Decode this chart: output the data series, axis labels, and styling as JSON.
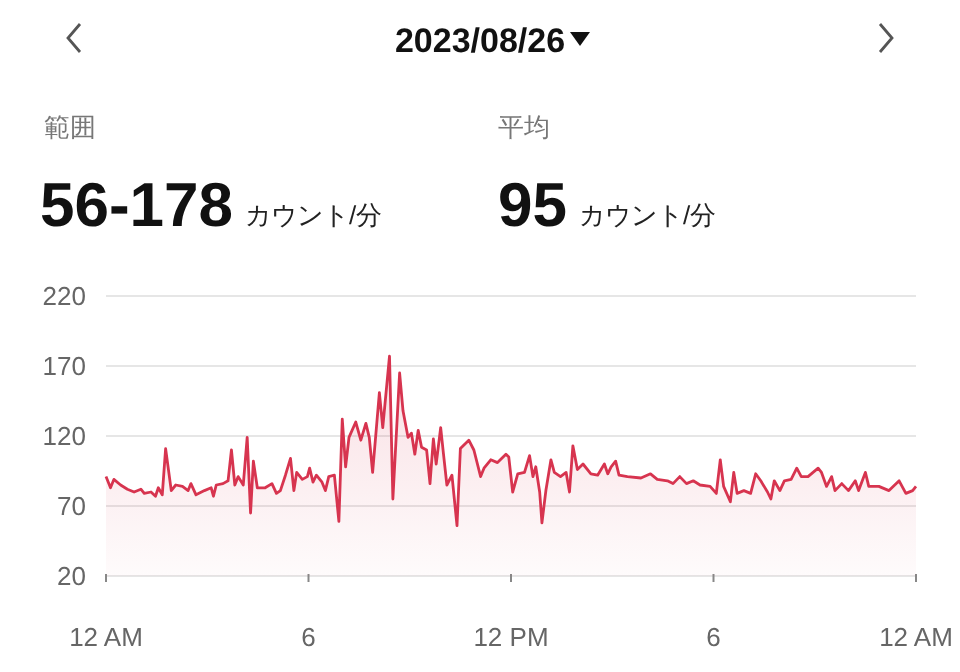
{
  "chart_data": {
    "type": "area",
    "title": "2023/08/26",
    "annotations": [
      "範囲",
      "56-178",
      "カウント/分",
      "平均",
      "95",
      "カウント/分"
    ],
    "color": "#d7344f",
    "marker": "none",
    "grid": "y",
    "xlim": [
      "2023-08-26T00:00",
      "2023-08-27T00:00"
    ],
    "xticks": [
      {
        "value": "2023-08-26T00:00",
        "label": "12 AM"
      },
      {
        "value": "2023-08-26T06:00",
        "label": "6"
      },
      {
        "value": "2023-08-26T12:00",
        "label": "12 PM"
      },
      {
        "value": "2023-08-26T18:00",
        "label": "6"
      },
      {
        "value": "2023-08-27T00:00",
        "label": "12 AM"
      }
    ],
    "ylim": [
      20,
      220
    ],
    "yticks": [
      20,
      70,
      120,
      170,
      220
    ],
    "x": [
      "2023-08-26T00:00",
      "2023-08-26T00:08",
      "2023-08-26T00:14",
      "2023-08-26T00:26",
      "2023-08-26T00:38",
      "2023-08-26T00:50",
      "2023-08-26T01:02",
      "2023-08-26T01:08",
      "2023-08-26T01:20",
      "2023-08-26T01:28",
      "2023-08-26T01:33",
      "2023-08-26T01:40",
      "2023-08-26T01:46",
      "2023-08-26T01:56",
      "2023-08-26T02:04",
      "2023-08-26T02:16",
      "2023-08-26T02:26",
      "2023-08-26T02:31",
      "2023-08-26T02:40",
      "2023-08-26T02:55",
      "2023-08-26T03:07",
      "2023-08-26T03:11",
      "2023-08-26T03:16",
      "2023-08-26T03:28",
      "2023-08-26T03:37",
      "2023-08-26T03:43",
      "2023-08-26T03:49",
      "2023-08-26T03:55",
      "2023-08-26T04:04",
      "2023-08-26T04:11",
      "2023-08-26T04:17",
      "2023-08-26T04:22",
      "2023-08-26T04:29",
      "2023-08-26T04:43",
      "2023-08-26T04:55",
      "2023-08-26T05:03",
      "2023-08-26T05:10",
      "2023-08-26T05:19",
      "2023-08-26T05:28",
      "2023-08-26T05:34",
      "2023-08-26T05:39",
      "2023-08-26T05:49",
      "2023-08-26T05:58",
      "2023-08-26T06:02",
      "2023-08-26T06:08",
      "2023-08-26T06:14",
      "2023-08-26T06:24",
      "2023-08-26T06:30",
      "2023-08-26T06:36",
      "2023-08-26T06:46",
      "2023-08-26T06:54",
      "2023-08-26T07:00",
      "2023-08-26T07:06",
      "2023-08-26T07:12",
      "2023-08-26T07:24",
      "2023-08-26T07:33",
      "2023-08-26T07:42",
      "2023-08-26T07:48",
      "2023-08-26T07:54",
      "2023-08-26T08:06",
      "2023-08-26T08:12",
      "2023-08-26T08:24",
      "2023-08-26T08:30",
      "2023-08-26T08:42",
      "2023-08-26T08:48",
      "2023-08-26T08:57",
      "2023-08-26T09:03",
      "2023-08-26T09:09",
      "2023-08-26T09:15",
      "2023-08-26T09:21",
      "2023-08-26T09:30",
      "2023-08-26T09:36",
      "2023-08-26T09:42",
      "2023-08-26T09:47",
      "2023-08-26T09:55",
      "2023-08-26T10:00",
      "2023-08-26T10:06",
      "2023-08-26T10:15",
      "2023-08-26T10:24",
      "2023-08-26T10:30",
      "2023-08-26T10:45",
      "2023-08-26T10:54",
      "2023-08-26T11:06",
      "2023-08-26T11:12",
      "2023-08-26T11:24",
      "2023-08-26T11:36",
      "2023-08-26T11:51",
      "2023-08-26T11:56",
      "2023-08-26T12:03",
      "2023-08-26T12:12",
      "2023-08-26T12:24",
      "2023-08-26T12:33",
      "2023-08-26T12:39",
      "2023-08-26T12:44",
      "2023-08-26T12:51",
      "2023-08-26T12:55",
      "2023-08-26T13:02",
      "2023-08-26T13:11",
      "2023-08-26T13:17",
      "2023-08-26T13:28",
      "2023-08-26T13:38",
      "2023-08-26T13:44",
      "2023-08-26T13:50",
      "2023-08-26T13:58",
      "2023-08-26T14:08",
      "2023-08-26T14:22",
      "2023-08-26T14:34",
      "2023-08-26T14:46",
      "2023-08-26T14:52",
      "2023-08-26T14:58",
      "2023-08-26T15:06",
      "2023-08-26T15:12",
      "2023-08-26T15:27",
      "2023-08-26T15:51",
      "2023-08-26T16:08",
      "2023-08-26T16:20",
      "2023-08-26T16:38",
      "2023-08-26T16:48",
      "2023-08-26T17:00",
      "2023-08-26T17:12",
      "2023-08-26T17:24",
      "2023-08-26T17:36",
      "2023-08-26T17:54",
      "2023-08-26T18:05",
      "2023-08-26T18:12",
      "2023-08-26T18:18",
      "2023-08-26T18:30",
      "2023-08-26T18:36",
      "2023-08-26T18:42",
      "2023-08-26T18:54",
      "2023-08-26T19:06",
      "2023-08-26T19:15",
      "2023-08-26T19:24",
      "2023-08-26T19:36",
      "2023-08-26T19:42",
      "2023-08-26T19:48",
      "2023-08-26T19:58",
      "2023-08-26T20:06",
      "2023-08-26T20:18",
      "2023-08-26T20:28",
      "2023-08-26T20:36",
      "2023-08-26T20:48",
      "2023-08-26T20:57",
      "2023-08-26T21:06",
      "2023-08-26T21:12",
      "2023-08-26T21:21",
      "2023-08-26T21:30",
      "2023-08-26T21:36",
      "2023-08-26T21:48",
      "2023-08-26T22:00",
      "2023-08-26T22:12",
      "2023-08-26T22:18",
      "2023-08-26T22:30",
      "2023-08-26T22:36",
      "2023-08-26T22:54",
      "2023-08-26T23:12",
      "2023-08-26T23:30",
      "2023-08-26T23:42",
      "2023-08-26T23:54",
      "2023-08-27T00:00"
    ],
    "values": [
      91,
      83,
      89,
      85,
      82,
      80,
      82,
      79,
      80,
      77,
      83,
      78,
      111,
      81,
      85,
      84,
      81,
      86,
      78,
      81,
      83,
      77,
      85,
      86,
      88,
      110,
      85,
      91,
      85,
      119,
      65,
      102,
      83,
      83,
      86,
      79,
      81,
      92,
      104,
      81,
      94,
      89,
      91,
      97,
      87,
      92,
      87,
      81,
      91,
      92,
      59,
      132,
      98,
      119,
      130,
      117,
      129,
      119,
      94,
      151,
      126,
      177,
      75,
      165,
      138,
      119,
      122,
      107,
      124,
      112,
      110,
      86,
      118,
      100,
      126,
      107,
      85,
      92,
      56,
      111,
      117,
      110,
      91,
      97,
      103,
      101,
      107,
      105,
      80,
      93,
      94,
      106,
      91,
      98,
      80,
      58,
      81,
      103,
      94,
      91,
      94,
      80,
      113,
      96,
      100,
      93,
      92,
      100,
      93,
      98,
      102,
      92,
      91,
      90,
      93,
      89,
      88,
      86,
      91,
      86,
      88,
      85,
      84,
      79,
      103,
      84,
      73,
      94,
      79,
      81,
      79,
      93,
      88,
      80,
      75,
      88,
      81,
      88,
      89,
      97,
      91,
      91,
      94,
      97,
      94,
      84,
      91,
      81,
      86,
      81,
      88,
      81,
      94,
      84,
      84,
      81,
      88,
      79,
      81,
      84
    ]
  }
}
